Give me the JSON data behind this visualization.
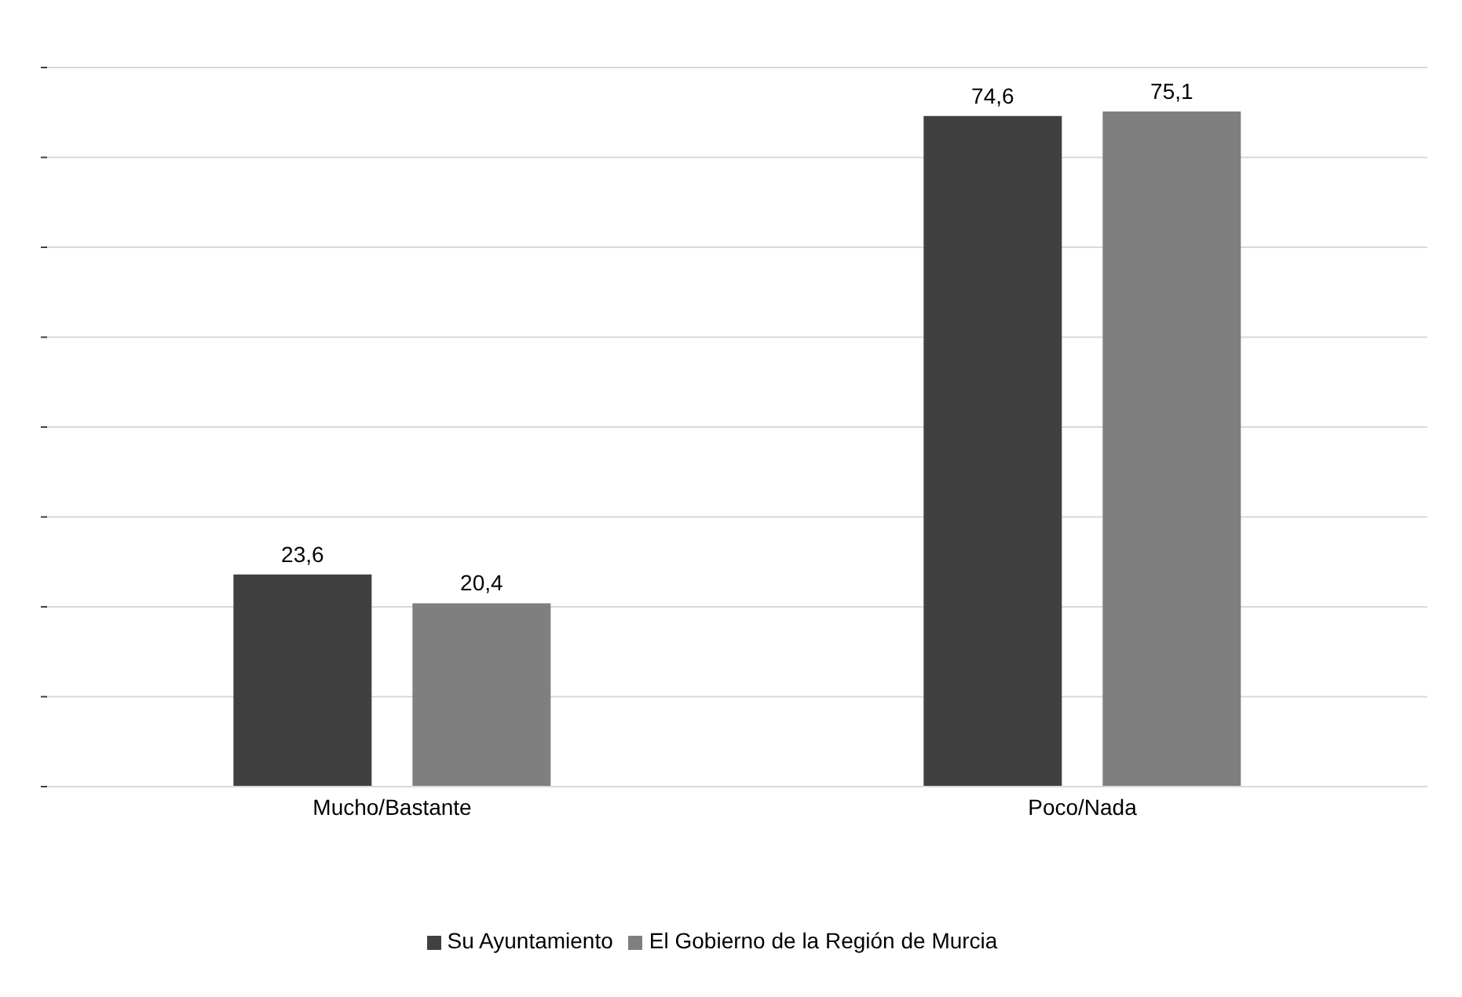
{
  "chart_data": {
    "type": "bar",
    "categories": [
      "Mucho/Bastante",
      "Poco/Nada"
    ],
    "series": [
      {
        "name": "Su Ayuntamiento",
        "color": "#404040",
        "values": [
          23.6,
          74.6
        ],
        "value_labels": [
          "23,6",
          "74,6"
        ]
      },
      {
        "name": "El Gobierno de la Región de Murcia",
        "color": "#7f7f7f",
        "values": [
          20.4,
          75.1
        ],
        "value_labels": [
          "20,4",
          "75,1"
        ]
      }
    ],
    "ylim": [
      0,
      80
    ],
    "yticks": [
      {
        "value": 0,
        "label": null
      },
      {
        "value": 10,
        "label": null
      },
      {
        "value": 20,
        "label": null
      },
      {
        "value": 30,
        "label": null
      },
      {
        "value": 40,
        "label": null
      },
      {
        "value": 50,
        "label": null
      },
      {
        "value": 60,
        "label": null
      },
      {
        "value": 70,
        "label": null
      },
      {
        "value": 80,
        "label": null
      }
    ],
    "tick_labels": "x",
    "grid": "y",
    "legend": "bottom"
  }
}
